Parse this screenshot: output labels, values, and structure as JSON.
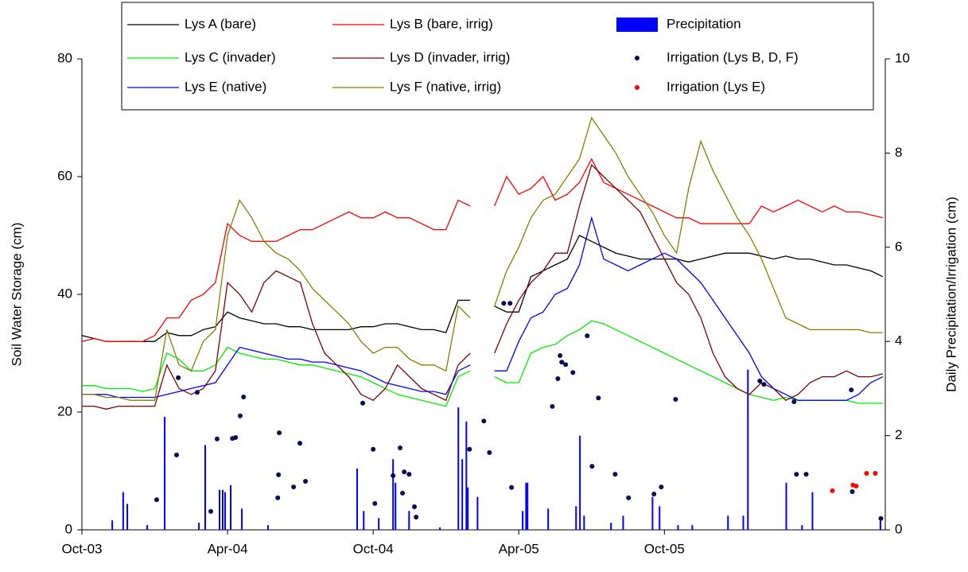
{
  "chart_data": {
    "type": "line",
    "ylabel": "Soil Water Storage (cm)",
    "y2label": "Daily Precipitation/Irrigation (cm)",
    "xlim": [
      0,
      33.1
    ],
    "xticks": [
      {
        "value": 0,
        "label": "Oct-03"
      },
      {
        "value": 6,
        "label": "Apr-04"
      },
      {
        "value": 12,
        "label": "Oct-04"
      },
      {
        "value": 18,
        "label": "Apr-05"
      },
      {
        "value": 24,
        "label": "Oct-05"
      }
    ],
    "ylim": [
      0,
      80
    ],
    "yticks": [
      0,
      20,
      40,
      60,
      80
    ],
    "y2lim": [
      0,
      10
    ],
    "y2ticks": [
      0,
      2,
      4,
      6,
      8,
      10
    ],
    "x": [
      0,
      0.5,
      1,
      1.5,
      2,
      2.5,
      3,
      3.5,
      4,
      4.5,
      5,
      5.5,
      6,
      6.5,
      7,
      7.5,
      8,
      8.5,
      9,
      9.5,
      10,
      10.5,
      11,
      11.5,
      12,
      12.5,
      13,
      13.5,
      14,
      14.5,
      15,
      15.5,
      16,
      16.5,
      17,
      17.5,
      18,
      18.5,
      19,
      19.5,
      20,
      20.5,
      21,
      21.5,
      22,
      22.5,
      23,
      23.5,
      24,
      24.5,
      25,
      25.5,
      26,
      26.5,
      27,
      27.5,
      28,
      28.5,
      29,
      29.5,
      30,
      30.5,
      31,
      31.5,
      32,
      32.5,
      33
    ],
    "series": [
      {
        "name": "Lys A (bare)",
        "type": "line",
        "color": "#000000",
        "values": [
          33,
          32.5,
          32,
          32,
          32,
          32,
          32,
          33.5,
          33,
          33,
          34,
          34.5,
          37,
          36,
          35.5,
          35,
          35,
          34.5,
          34.5,
          34,
          34,
          34,
          34,
          34.5,
          34.5,
          35,
          35,
          34.5,
          34,
          34,
          33.5,
          39,
          39,
          null,
          38,
          37,
          37,
          43,
          44,
          45,
          46,
          50,
          49,
          48,
          47,
          46.5,
          46,
          46,
          46,
          46,
          45.5,
          46,
          46.5,
          47,
          47,
          47,
          46.5,
          46,
          46.5,
          46,
          46,
          45.5,
          45,
          45,
          44.5,
          44,
          43
        ]
      },
      {
        "name": "Lys B (bare, irrig)",
        "type": "line",
        "color": "#ff0000",
        "values": [
          32,
          32.5,
          32,
          32,
          32,
          32,
          33,
          36,
          36,
          39,
          40,
          42,
          52,
          50,
          49,
          49,
          49,
          50,
          51,
          51,
          52,
          53,
          54,
          53,
          53,
          54,
          53,
          53,
          52,
          51,
          51,
          56,
          55,
          null,
          55,
          60,
          57,
          58,
          60,
          56,
          57,
          59,
          63,
          59,
          58,
          57,
          56,
          55,
          54,
          53,
          53,
          52,
          52,
          52,
          52,
          52,
          55,
          54,
          55,
          56,
          55,
          54,
          55,
          54,
          54,
          53.5,
          53
        ]
      },
      {
        "name": "Lys C (invader)",
        "type": "line",
        "color": "#00ee00",
        "values": [
          24.5,
          24.5,
          24,
          24,
          24,
          23.5,
          24,
          30,
          29,
          27,
          27,
          28,
          31,
          30,
          29.5,
          29,
          29,
          28.5,
          28,
          28,
          27.5,
          27,
          26.5,
          26,
          25,
          24,
          23,
          22.5,
          22,
          21.5,
          21,
          26,
          27,
          null,
          26,
          25,
          25,
          30,
          31,
          31.5,
          33,
          34,
          35.5,
          35,
          34,
          33,
          32,
          31,
          30,
          29,
          28,
          27,
          26,
          25,
          24,
          23,
          22.5,
          22,
          22.5,
          22,
          22,
          22,
          22,
          22,
          21.5,
          21.5,
          21.5
        ]
      },
      {
        "name": "Lys D (invader, irrig)",
        "type": "line",
        "color": "#800000",
        "values": [
          21,
          21,
          20.5,
          21,
          21,
          21,
          21,
          28,
          24,
          23,
          24,
          27,
          42,
          40,
          37,
          42,
          44,
          43,
          42,
          35,
          30,
          28,
          26,
          23,
          22,
          24,
          28,
          26,
          24,
          23,
          22,
          28,
          30,
          null,
          30,
          35,
          39,
          42,
          44,
          47,
          47,
          55,
          62,
          60,
          58,
          56,
          54,
          50,
          46,
          42,
          40,
          36,
          30,
          26,
          24,
          23,
          25,
          24,
          22,
          23,
          25,
          26,
          26,
          27,
          26,
          26,
          26.5
        ]
      },
      {
        "name": "Lys E (native)",
        "type": "line",
        "color": "#0000ff",
        "values": [
          23,
          23,
          23,
          22.5,
          22.5,
          22.5,
          22.5,
          23,
          23.5,
          24,
          24.5,
          25,
          28,
          31,
          30.5,
          30,
          29.5,
          29,
          29,
          28.5,
          28.5,
          28,
          27.5,
          27,
          26,
          25,
          24.5,
          24,
          23.5,
          23.5,
          23,
          27,
          28,
          null,
          27,
          27,
          32,
          36,
          37,
          40,
          41,
          45,
          53,
          46,
          45,
          44,
          45,
          46,
          47,
          46,
          44,
          42,
          39,
          36,
          33,
          30,
          26,
          24,
          23,
          22,
          22,
          22,
          22,
          22,
          23,
          25,
          26
        ]
      },
      {
        "name": "Lys F (native, irrig)",
        "type": "line",
        "color": "#808000",
        "values": [
          23,
          23,
          22.5,
          22.5,
          22,
          22,
          22,
          34,
          28,
          27,
          32,
          34,
          50,
          56,
          53,
          49,
          47,
          46,
          44,
          41,
          39,
          37,
          35,
          32,
          30,
          31,
          31,
          29,
          28,
          28,
          27,
          38,
          36,
          null,
          38,
          44,
          48,
          53,
          56,
          57,
          60,
          63,
          70,
          67,
          64,
          60,
          57,
          54,
          50,
          47,
          58,
          66,
          61,
          57,
          53,
          50,
          46,
          41,
          36,
          35,
          34,
          34,
          34,
          34,
          34,
          33.5,
          33.5
        ]
      },
      {
        "name": "Precipitation",
        "type": "bar",
        "axis": "y2",
        "color": "#0000ff",
        "x": [
          1.25,
          1.7,
          1.87,
          2.69,
          3.41,
          4.82,
          5.08,
          5.67,
          5.8,
          5.9,
          6.13,
          6.59,
          7.67,
          11.34,
          11.61,
          12.23,
          12.82,
          12.92,
          13.48,
          14.75,
          15.51,
          15.67,
          15.84,
          15.9,
          16.3,
          18.16,
          18.3,
          18.36,
          19.21,
          20.36,
          20.52,
          20.69,
          21.8,
          22.3,
          23.51,
          23.8,
          24.56,
          25.15,
          26.62,
          27.25,
          27.44,
          29.02,
          29.67,
          30.1,
          32.9
        ],
        "values": [
          0.2,
          0.8,
          0.55,
          0.1,
          2.4,
          0.15,
          1.8,
          0.85,
          0.85,
          0.8,
          0.95,
          0.45,
          0.1,
          1.3,
          0.4,
          0.25,
          1.5,
          1.0,
          0.4,
          0.05,
          2.6,
          1.5,
          2.3,
          0.9,
          0.7,
          0.4,
          1.0,
          1.0,
          0.45,
          0.5,
          2.0,
          0.3,
          0.15,
          0.3,
          0.7,
          0.5,
          0.1,
          0.1,
          0.3,
          0.3,
          3.4,
          1.0,
          0.1,
          0.8,
          0.2
        ]
      },
      {
        "name": "Irrigation (Lys B, D, F)",
        "type": "scatter",
        "axis": "y2",
        "color": "#0a0a55",
        "x": [
          3.08,
          3.9,
          3.97,
          4.75,
          5.31,
          5.57,
          6.2,
          6.33,
          6.52,
          6.66,
          8.07,
          8.1,
          8.13,
          8.72,
          8.98,
          9.21,
          11.57,
          12.0,
          12.07,
          12.82,
          13.11,
          13.21,
          13.28,
          13.48,
          13.7,
          13.77,
          15.97,
          16.56,
          16.79,
          17.38,
          17.64,
          17.7,
          19.38,
          19.61,
          19.7,
          19.77,
          19.93,
          20.23,
          20.82,
          21.02,
          21.28,
          21.97,
          22.52,
          23.57,
          23.87,
          24.46,
          27.93,
          28.1,
          29.34,
          29.44,
          29.84,
          31.7,
          31.74,
          32.92
        ],
        "values": [
          0.64,
          1.59,
          3.23,
          2.92,
          0.39,
          1.93,
          1.94,
          1.96,
          2.42,
          2.82,
          0.68,
          1.17,
          2.06,
          0.91,
          1.84,
          1.03,
          2.69,
          1.71,
          0.56,
          1.15,
          1.74,
          0.78,
          1.23,
          1.18,
          0.49,
          0.27,
          1.71,
          2.31,
          1.64,
          4.81,
          4.81,
          0.9,
          2.62,
          3.21,
          3.7,
          3.56,
          3.51,
          3.34,
          4.12,
          1.35,
          2.8,
          1.18,
          0.68,
          0.76,
          0.91,
          2.77,
          3.16,
          3.09,
          2.72,
          1.18,
          1.18,
          2.97,
          0.81,
          0.24
        ]
      },
      {
        "name": "Irrigation (Lys E)",
        "type": "scatter",
        "axis": "y2",
        "color": "#ff0000",
        "x": [
          30.92,
          31.77,
          31.9,
          32.33,
          32.69
        ],
        "values": [
          0.83,
          0.95,
          0.93,
          1.2,
          1.2
        ]
      }
    ]
  }
}
